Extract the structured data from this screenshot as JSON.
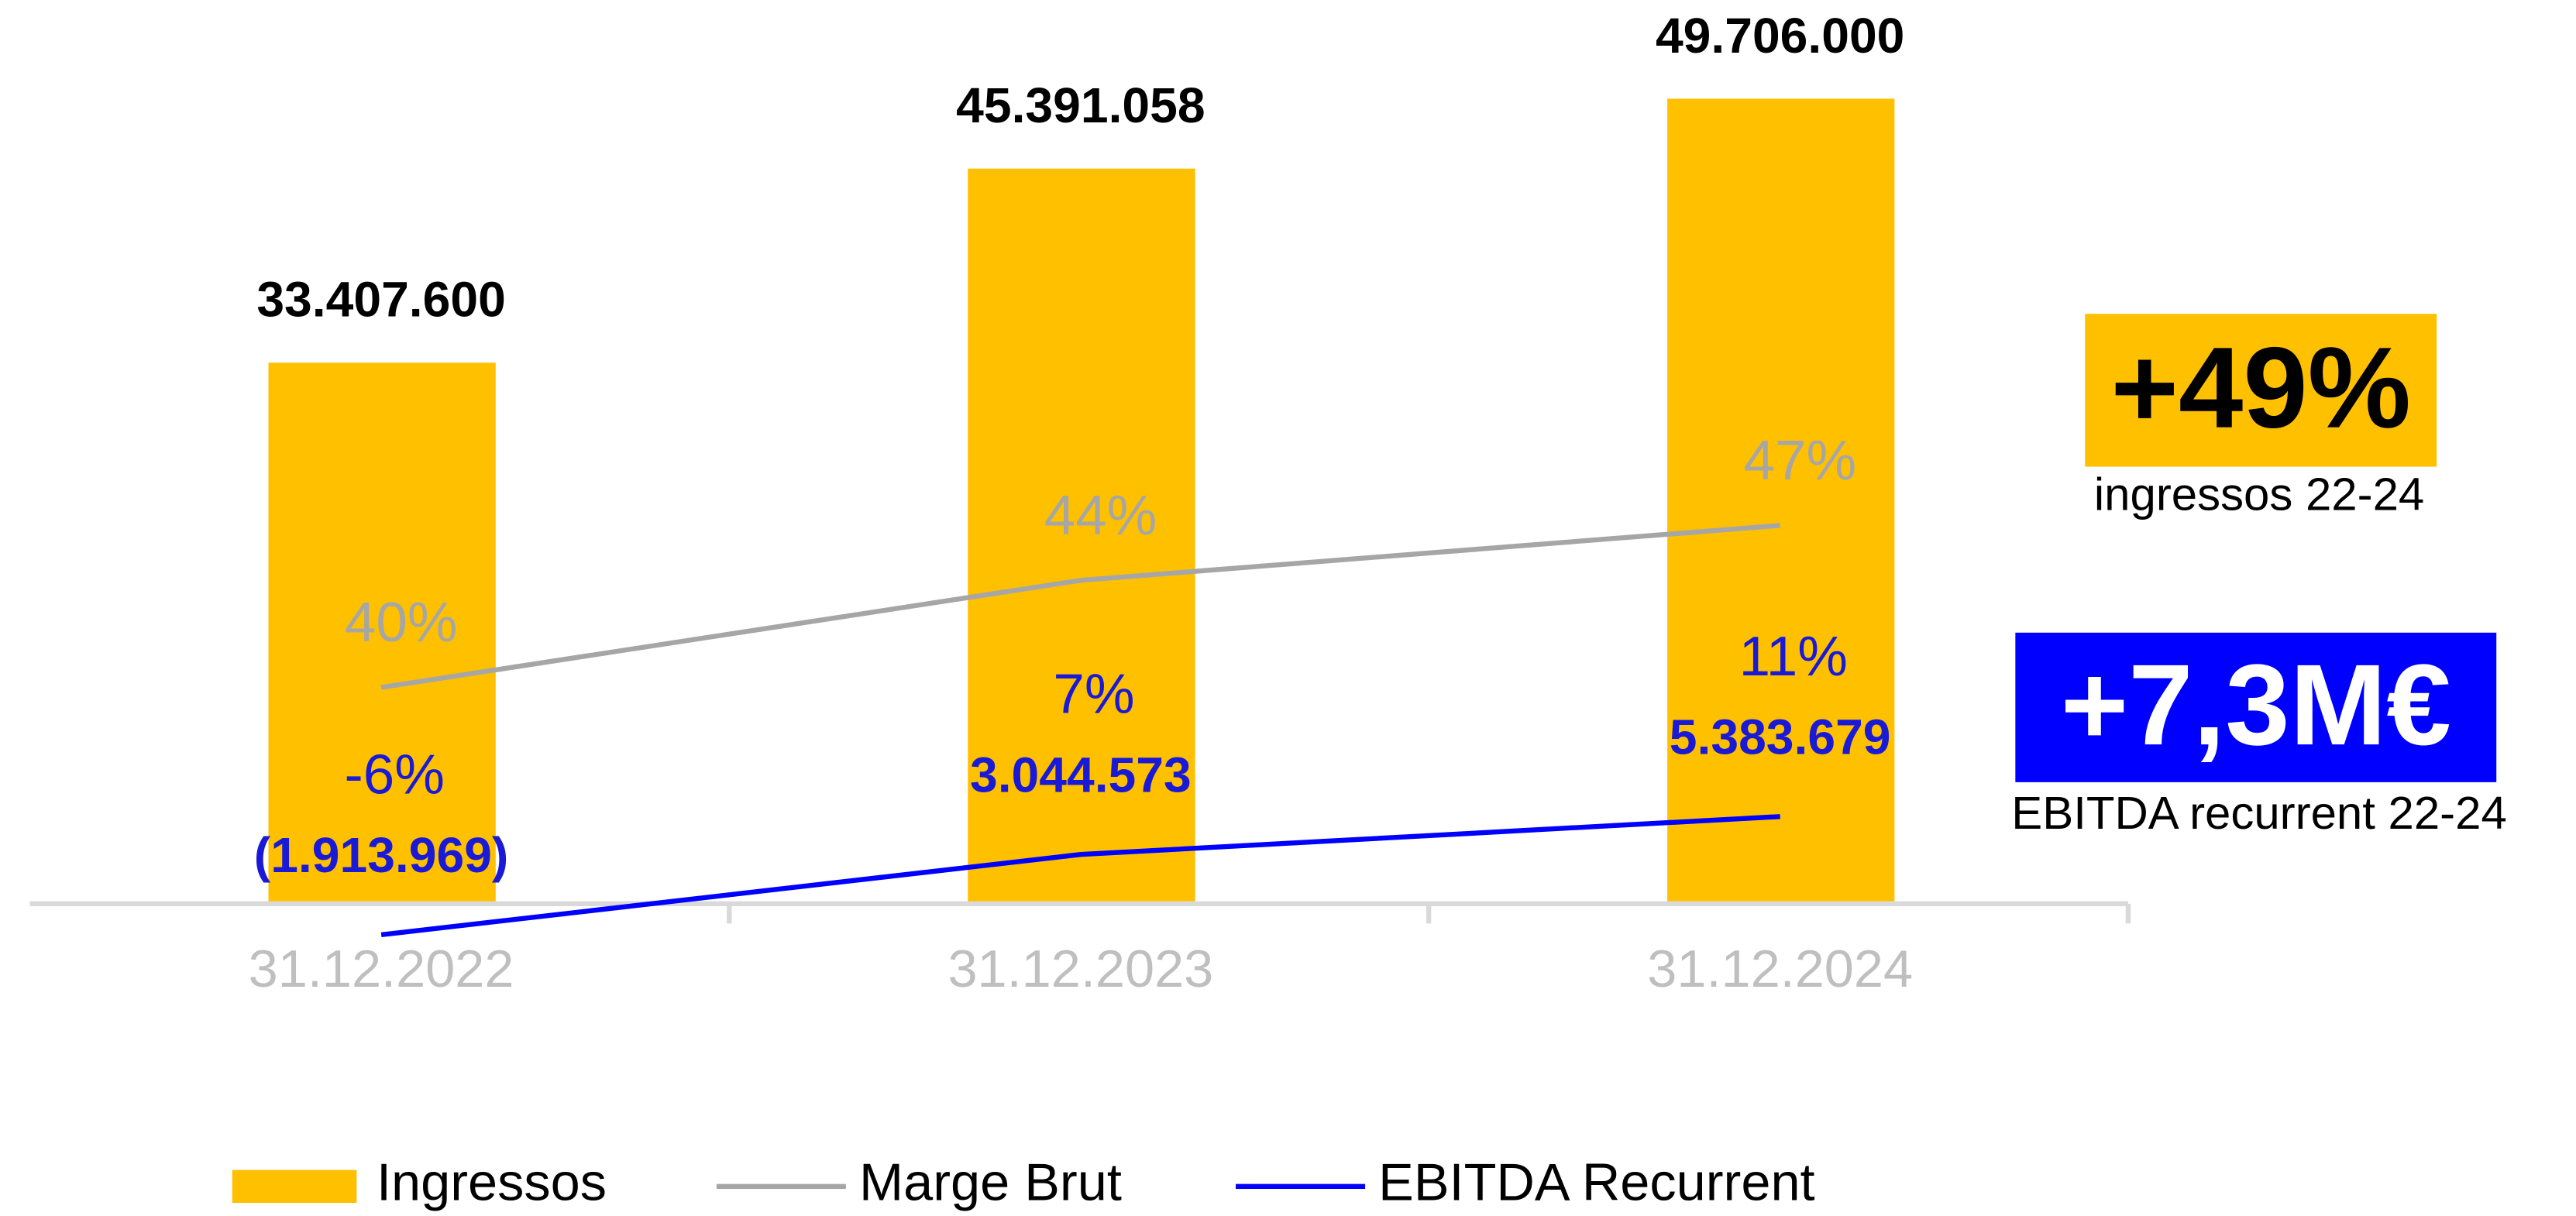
{
  "chart_data": {
    "type": "bar-line",
    "categories": [
      "31.12.2022",
      "31.12.2023",
      "31.12.2024"
    ],
    "ylim": [
      -2000000,
      55800000
    ],
    "series": [
      {
        "name": "Ingressos",
        "kind": "bar",
        "color": "#ffc000",
        "values": [
          33407600,
          45391058,
          49706000
        ],
        "value_labels": [
          "33.407.600",
          "45.391.058",
          "49.706.000"
        ]
      },
      {
        "name": "Marge Brut",
        "kind": "line",
        "color": "#a6a6a6",
        "values": [
          13360000,
          19970000,
          23360000
        ],
        "pct_labels": [
          "40%",
          "44%",
          "47%"
        ]
      },
      {
        "name": "EBITDA Recurrent",
        "kind": "line",
        "color": "#0000ff",
        "values": [
          -1913969,
          3044573,
          5383679
        ],
        "value_labels": [
          "(1.913.969)",
          "3.044.573",
          "5.383.679"
        ],
        "pct_labels": [
          "-6%",
          "7%",
          "11%"
        ]
      }
    ],
    "legend": "bottom",
    "callouts": [
      {
        "value": "+49%",
        "caption": "ingressos 22-24",
        "color": "#ffc000",
        "text_color": "#000000"
      },
      {
        "value": "+7,3M€",
        "caption": "EBITDA recurrent 22-24",
        "color": "#0000ff",
        "text_color": "#ffffff"
      }
    ]
  }
}
